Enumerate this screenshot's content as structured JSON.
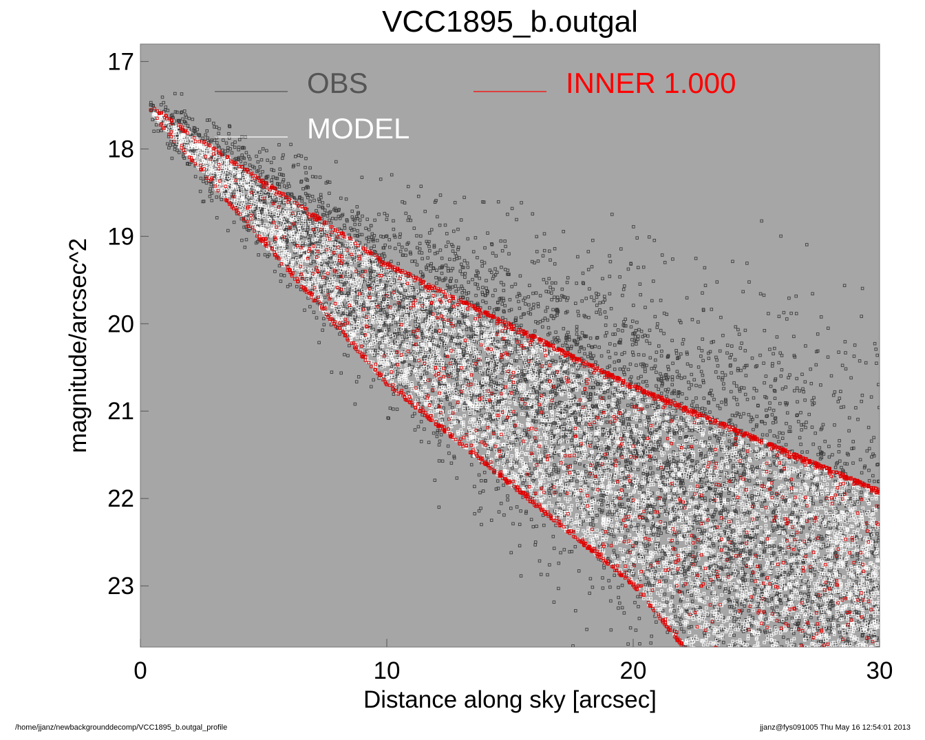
{
  "chart_data": {
    "type": "scatter",
    "title": "VCC1895_b.outgal",
    "xlabel": "Distance along sky [arcsec]",
    "ylabel": "magnitude/arcsec^2",
    "xlim": [
      0,
      30
    ],
    "ylim": [
      23.7,
      16.8
    ],
    "y_inverted": true,
    "xticks": [
      0,
      10,
      20,
      30
    ],
    "yticks": [
      17,
      18,
      19,
      20,
      21,
      22,
      23
    ],
    "background": "#a6a6a6",
    "marker": "open-square",
    "legend": [
      {
        "name": "OBS",
        "color": "#555555"
      },
      {
        "name": "MODEL",
        "color": "#ffffff"
      },
      {
        "name": "INNER  1.000",
        "color": "#ff0000"
      }
    ],
    "series": [
      {
        "name": "OBS",
        "color": "#3c3c3c",
        "envelope": {
          "x": [
            0.4,
            30
          ],
          "y_bright_at_0": 17.4,
          "y_bright_at_30": 19.9,
          "y_faint_at_30": 23.7
        },
        "approx_points": 7000
      },
      {
        "name": "MODEL",
        "color": "#ffffff",
        "envelope": {
          "x": [
            0.4,
            30
          ],
          "y_bright_edge": [
            [
              0.4,
              17.5
            ],
            [
              10,
              19.3
            ],
            [
              20,
              20.7
            ],
            [
              30,
              21.9
            ]
          ],
          "y_faint_edge": [
            [
              0.4,
              17.6
            ],
            [
              10,
              20.7
            ],
            [
              20,
              23.0
            ],
            [
              22,
              23.7
            ]
          ]
        },
        "approx_points": 6500
      },
      {
        "name": "INNER  1.000",
        "color": "#e00000",
        "envelope": {
          "x": [
            0.4,
            30
          ],
          "y_bright_edge": [
            [
              0.4,
              17.5
            ],
            [
              10,
              19.3
            ],
            [
              20,
              20.7
            ],
            [
              30,
              21.9
            ]
          ],
          "y_faint_edge": [
            [
              0.4,
              17.6
            ],
            [
              10,
              20.7
            ],
            [
              20,
              23.0
            ],
            [
              22,
              23.7
            ]
          ]
        },
        "approx_points": 2200
      }
    ]
  },
  "footer": {
    "path": "/home/jjanz/newbackgrounddecomp/VCC1895_b.outgal_profile",
    "stamp": "jjanz@fys091005  Thu May 16 12:54:01 2013"
  }
}
